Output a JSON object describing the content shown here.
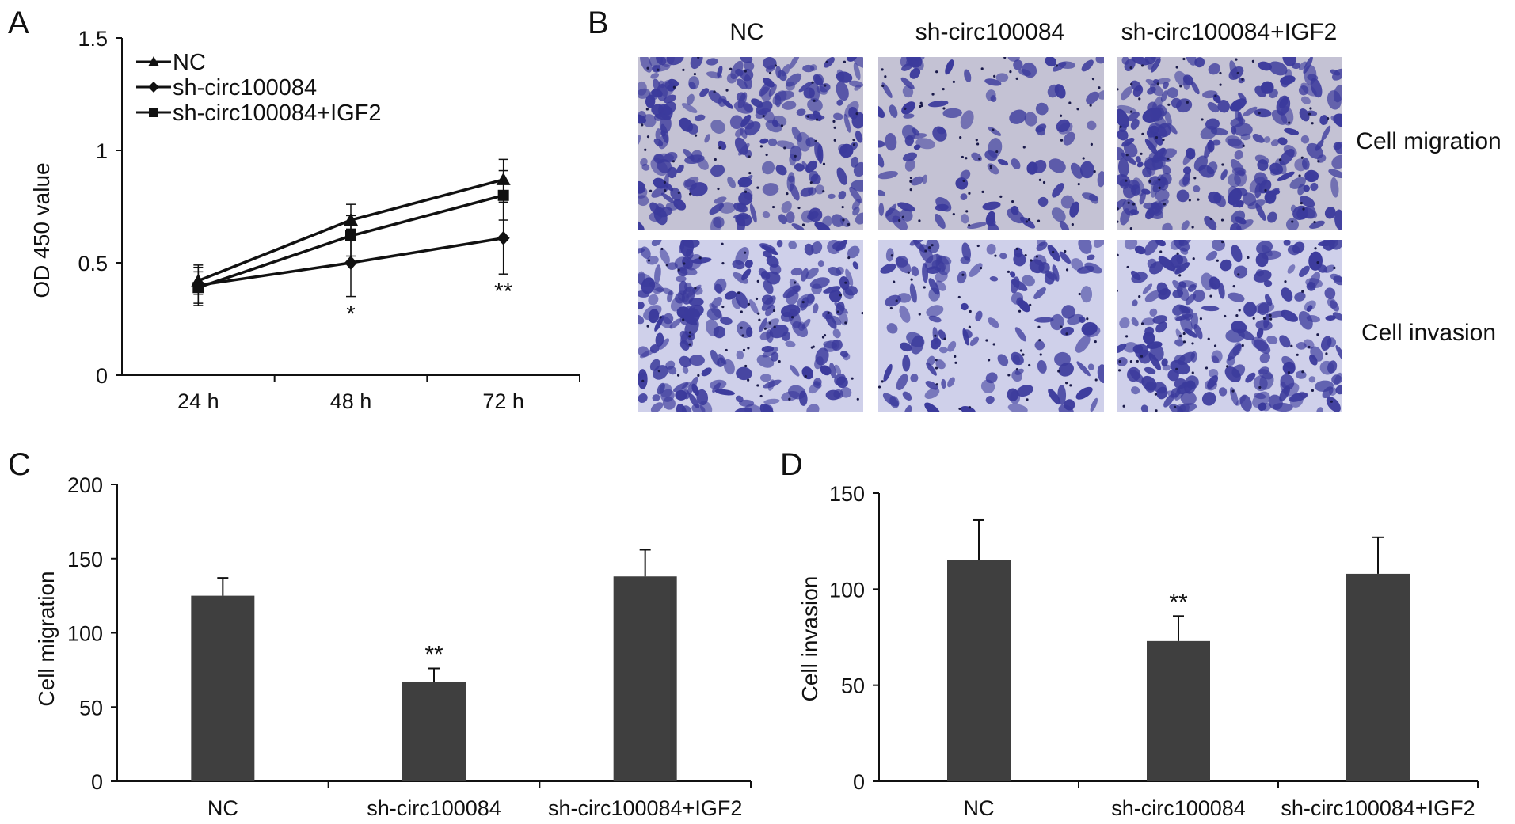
{
  "panels": {
    "a_letter": "A",
    "b_letter": "B",
    "c_letter": "C",
    "d_letter": "D"
  },
  "colors": {
    "ink": "#111111",
    "bar_fill": "#3f3f3f",
    "stain_bg": "#c4c2d4",
    "stain_cell": "#3b3a9c"
  },
  "micrographs": {
    "columns": [
      "NC",
      "sh-circ100084",
      "sh-circ100084+IGF2"
    ],
    "rows": [
      "Cell migration",
      "Cell invasion"
    ]
  },
  "chart_data": [
    {
      "panel": "A",
      "type": "line",
      "categories": [
        "24 h",
        "48 h",
        "72 h"
      ],
      "ylabel": "OD 450 value",
      "ylim": [
        0,
        1.5
      ],
      "yticks": [
        "0",
        "0.5",
        "1",
        "1.5"
      ],
      "legend_position": "top-left",
      "series": [
        {
          "name": "NC",
          "marker": "triangle",
          "values": [
            0.42,
            0.69,
            0.87
          ],
          "errors": [
            0.06,
            0.07,
            0.09
          ]
        },
        {
          "name": "sh-circ100084",
          "marker": "diamond",
          "values": [
            0.4,
            0.5,
            0.61
          ],
          "errors": [
            0.09,
            0.15,
            0.16
          ]
        },
        {
          "name": "sh-circ100084+IGF2",
          "marker": "square",
          "values": [
            0.39,
            0.62,
            0.8
          ],
          "errors": [
            0.07,
            0.09,
            0.11
          ]
        }
      ],
      "annotations": [
        {
          "category": "48 h",
          "text": "*"
        },
        {
          "category": "72 h",
          "text": "**"
        }
      ]
    },
    {
      "panel": "C",
      "type": "bar",
      "categories": [
        "NC",
        "sh-circ100084",
        "sh-circ100084+IGF2"
      ],
      "values": [
        125,
        67,
        138
      ],
      "errors": [
        12,
        9,
        18
      ],
      "ylabel": "Cell migration",
      "ylim": [
        0,
        200
      ],
      "yticks": [
        "0",
        "50",
        "100",
        "150",
        "200"
      ],
      "annotations": [
        {
          "category": "sh-circ100084",
          "text": "**"
        }
      ]
    },
    {
      "panel": "D",
      "type": "bar",
      "categories": [
        "NC",
        "sh-circ100084",
        "sh-circ100084+IGF2"
      ],
      "values": [
        115,
        73,
        108
      ],
      "errors": [
        21,
        13,
        19
      ],
      "ylabel": "Cell invasion",
      "ylim": [
        0,
        150
      ],
      "yticks": [
        "0",
        "50",
        "100",
        "150"
      ],
      "annotations": [
        {
          "category": "sh-circ100084",
          "text": "**"
        }
      ]
    }
  ]
}
